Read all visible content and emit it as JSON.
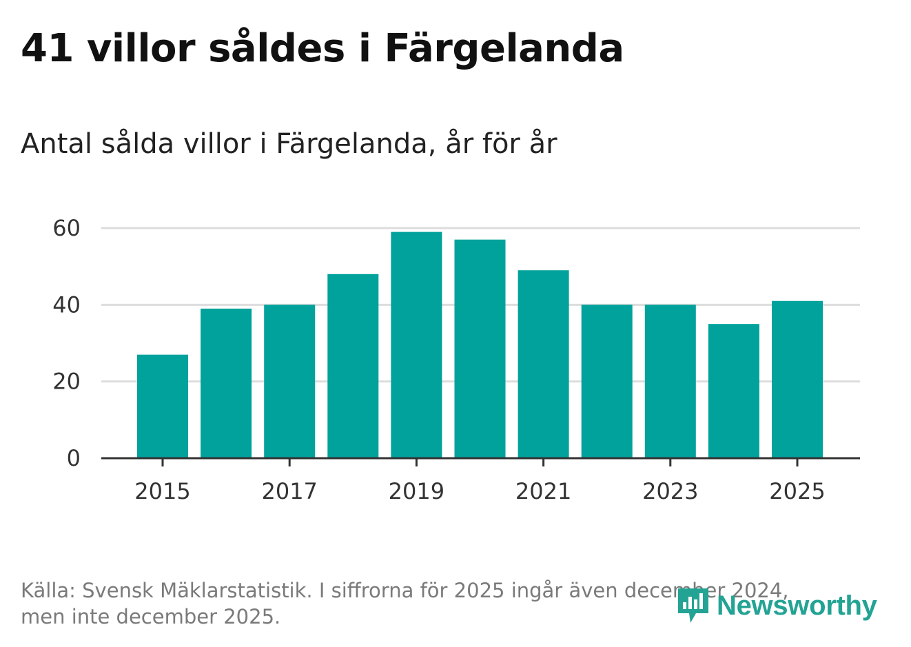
{
  "header": {
    "title": "41 villor såldes i Färgelanda",
    "subtitle": "Antal sålda villor i Färgelanda, år för år"
  },
  "footer": {
    "source_line1": "Källa: Svensk Mäklarstatistik. I siffrorna för 2025 ingår även december 2024,",
    "source_line2": "men inte december 2025."
  },
  "logo": {
    "text": "Newsworthy",
    "icon": "newsworthy-logo-icon"
  },
  "colors": {
    "bar": "#00a29b",
    "grid": "#dddddd",
    "axis": "#333333",
    "text": "#333333",
    "brand": "#23a394"
  },
  "chart_data": {
    "type": "bar",
    "title": "Antal sålda villor i Färgelanda, år för år",
    "categories": [
      "2015",
      "2016",
      "2017",
      "2018",
      "2019",
      "2020",
      "2021",
      "2022",
      "2023",
      "2024",
      "2025"
    ],
    "values": [
      27,
      39,
      40,
      48,
      59,
      57,
      49,
      40,
      40,
      35,
      41
    ],
    "x_tick_labels": [
      "2015",
      "2017",
      "2019",
      "2021",
      "2023",
      "2025"
    ],
    "y_ticks": [
      "0",
      "20",
      "40",
      "60"
    ],
    "ylim": [
      0,
      60
    ],
    "xlabel": "",
    "ylabel": "",
    "grid": true
  }
}
